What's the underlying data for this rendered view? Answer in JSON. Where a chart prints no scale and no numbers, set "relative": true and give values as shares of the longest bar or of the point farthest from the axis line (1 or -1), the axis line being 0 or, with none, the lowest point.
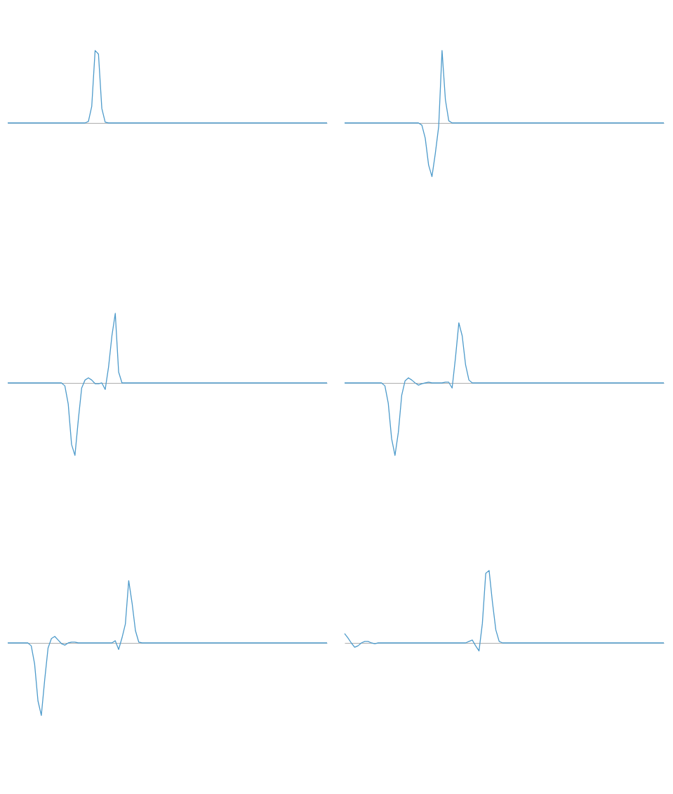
{
  "chart_data": [
    {
      "type": "line",
      "relative": true,
      "color": "#4e9bcb",
      "categories": [
        null,
        null,
        null,
        null,
        null,
        null,
        null,
        null,
        null,
        null,
        null,
        null,
        null,
        null,
        null,
        null,
        null,
        null,
        null,
        null,
        null,
        null,
        null,
        null,
        null,
        null,
        null,
        null,
        null,
        null,
        null,
        null,
        null,
        null,
        null,
        null,
        null,
        null,
        null,
        null,
        null,
        null,
        null,
        null,
        null,
        null,
        null,
        null,
        null,
        null,
        null,
        null,
        null,
        null,
        null,
        null,
        null,
        null,
        null,
        null,
        null,
        null,
        null,
        null,
        null,
        null,
        null,
        null,
        null,
        null,
        null,
        null,
        null,
        null,
        null,
        null,
        null,
        null,
        null,
        null,
        null,
        null,
        null,
        null,
        null,
        null,
        null,
        null,
        null,
        null,
        null,
        null,
        null,
        null,
        null,
        null
      ],
      "values": [
        0,
        0,
        0,
        0,
        0,
        0,
        0,
        0,
        0,
        0,
        0,
        0,
        0,
        0,
        0,
        0,
        0,
        0,
        0,
        0,
        0,
        0,
        0,
        0,
        0.02,
        0.23,
        1,
        0.95,
        0.2,
        0.01,
        0,
        0,
        0,
        0,
        0,
        0,
        0,
        0,
        0,
        0,
        0,
        0,
        0,
        0,
        0,
        0,
        0,
        0,
        0,
        0,
        0,
        0,
        0,
        0,
        0,
        0,
        0,
        0,
        0,
        0,
        0,
        0,
        0,
        0,
        0,
        0,
        0,
        0,
        0,
        0,
        0,
        0,
        0,
        0,
        0,
        0,
        0,
        0,
        0,
        0,
        0,
        0,
        0,
        0,
        0,
        0,
        0,
        0,
        0,
        0,
        0,
        0,
        0,
        0,
        0,
        0
      ]
    },
    {
      "type": "line",
      "relative": true,
      "color": "#4e9bcb",
      "categories": [
        null,
        null,
        null,
        null,
        null,
        null,
        null,
        null,
        null,
        null,
        null,
        null,
        null,
        null,
        null,
        null,
        null,
        null,
        null,
        null,
        null,
        null,
        null,
        null,
        null,
        null,
        null,
        null,
        null,
        null,
        null,
        null,
        null,
        null,
        null,
        null,
        null,
        null,
        null,
        null,
        null,
        null,
        null,
        null,
        null,
        null,
        null,
        null,
        null,
        null,
        null,
        null,
        null,
        null,
        null,
        null,
        null,
        null,
        null,
        null,
        null,
        null,
        null,
        null,
        null,
        null,
        null,
        null,
        null,
        null,
        null,
        null,
        null,
        null,
        null,
        null,
        null,
        null,
        null,
        null,
        null,
        null,
        null,
        null,
        null,
        null,
        null,
        null,
        null,
        null,
        null,
        null,
        null,
        null,
        null,
        null
      ],
      "values": [
        0,
        0,
        0,
        0,
        0,
        0,
        0,
        0,
        0,
        0,
        0,
        0,
        0,
        0,
        0,
        0,
        0,
        0,
        0,
        0,
        0,
        0,
        0,
        -0.03,
        -0.21,
        -0.58,
        -0.74,
        -0.42,
        -0.05,
        1,
        0.32,
        0.03,
        0,
        0,
        0,
        0,
        0,
        0,
        0,
        0,
        0,
        0,
        0,
        0,
        0,
        0,
        0,
        0,
        0,
        0,
        0,
        0,
        0,
        0,
        0,
        0,
        0,
        0,
        0,
        0,
        0,
        0,
        0,
        0,
        0,
        0,
        0,
        0,
        0,
        0,
        0,
        0,
        0,
        0,
        0,
        0,
        0,
        0,
        0,
        0,
        0,
        0,
        0,
        0,
        0,
        0,
        0,
        0,
        0,
        0,
        0,
        0,
        0,
        0,
        0,
        0
      ]
    },
    {
      "type": "line",
      "relative": true,
      "color": "#4e9bcb",
      "categories": [
        null,
        null,
        null,
        null,
        null,
        null,
        null,
        null,
        null,
        null,
        null,
        null,
        null,
        null,
        null,
        null,
        null,
        null,
        null,
        null,
        null,
        null,
        null,
        null,
        null,
        null,
        null,
        null,
        null,
        null,
        null,
        null,
        null,
        null,
        null,
        null,
        null,
        null,
        null,
        null,
        null,
        null,
        null,
        null,
        null,
        null,
        null,
        null,
        null,
        null,
        null,
        null,
        null,
        null,
        null,
        null,
        null,
        null,
        null,
        null,
        null,
        null,
        null,
        null,
        null,
        null,
        null,
        null,
        null,
        null,
        null,
        null,
        null,
        null,
        null,
        null,
        null,
        null,
        null,
        null,
        null,
        null,
        null,
        null,
        null,
        null,
        null,
        null,
        null,
        null,
        null,
        null,
        null,
        null,
        null,
        null
      ],
      "values": [
        0,
        0,
        0,
        0,
        0,
        0,
        0,
        0,
        0,
        0,
        0,
        0,
        0,
        0,
        0,
        0,
        0,
        -0.04,
        -0.29,
        -0.85,
        -1,
        -0.51,
        -0.07,
        0.04,
        0.07,
        0.04,
        -0.01,
        -0.01,
        0,
        -0.09,
        0.22,
        0.65,
        0.96,
        0.15,
        0,
        0,
        0,
        0,
        0,
        0,
        0,
        0,
        0,
        0,
        0,
        0,
        0,
        0,
        0,
        0,
        0,
        0,
        0,
        0,
        0,
        0,
        0,
        0,
        0,
        0,
        0,
        0,
        0,
        0,
        0,
        0,
        0,
        0,
        0,
        0,
        0,
        0,
        0,
        0,
        0,
        0,
        0,
        0,
        0,
        0,
        0,
        0,
        0,
        0,
        0,
        0,
        0,
        0,
        0,
        0,
        0,
        0,
        0,
        0,
        0,
        0
      ]
    },
    {
      "type": "line",
      "relative": true,
      "color": "#4e9bcb",
      "categories": [
        null,
        null,
        null,
        null,
        null,
        null,
        null,
        null,
        null,
        null,
        null,
        null,
        null,
        null,
        null,
        null,
        null,
        null,
        null,
        null,
        null,
        null,
        null,
        null,
        null,
        null,
        null,
        null,
        null,
        null,
        null,
        null,
        null,
        null,
        null,
        null,
        null,
        null,
        null,
        null,
        null,
        null,
        null,
        null,
        null,
        null,
        null,
        null,
        null,
        null,
        null,
        null,
        null,
        null,
        null,
        null,
        null,
        null,
        null,
        null,
        null,
        null,
        null,
        null,
        null,
        null,
        null,
        null,
        null,
        null,
        null,
        null,
        null,
        null,
        null,
        null,
        null,
        null,
        null,
        null,
        null,
        null,
        null,
        null,
        null,
        null,
        null,
        null,
        null,
        null,
        null,
        null,
        null,
        null,
        null,
        null
      ],
      "values": [
        0,
        0,
        0,
        0,
        0,
        0,
        0,
        0,
        0,
        0,
        0,
        0,
        -0.04,
        -0.28,
        -0.77,
        -1,
        -0.68,
        -0.17,
        0.03,
        0.07,
        0.04,
        0,
        -0.03,
        -0.01,
        0,
        0.01,
        0,
        0,
        0,
        0,
        0.01,
        0.01,
        -0.07,
        0.35,
        0.83,
        0.65,
        0.25,
        0.04,
        0,
        0,
        0,
        0,
        0,
        0,
        0,
        0,
        0,
        0,
        0,
        0,
        0,
        0,
        0,
        0,
        0,
        0,
        0,
        0,
        0,
        0,
        0,
        0,
        0,
        0,
        0,
        0,
        0,
        0,
        0,
        0,
        0,
        0,
        0,
        0,
        0,
        0,
        0,
        0,
        0,
        0,
        0,
        0,
        0,
        0,
        0,
        0,
        0,
        0,
        0,
        0,
        0,
        0,
        0,
        0,
        0,
        0
      ]
    },
    {
      "type": "line",
      "relative": true,
      "color": "#4e9bcb",
      "categories": [
        null,
        null,
        null,
        null,
        null,
        null,
        null,
        null,
        null,
        null,
        null,
        null,
        null,
        null,
        null,
        null,
        null,
        null,
        null,
        null,
        null,
        null,
        null,
        null,
        null,
        null,
        null,
        null,
        null,
        null,
        null,
        null,
        null,
        null,
        null,
        null,
        null,
        null,
        null,
        null,
        null,
        null,
        null,
        null,
        null,
        null,
        null,
        null,
        null,
        null,
        null,
        null,
        null,
        null,
        null,
        null,
        null,
        null,
        null,
        null,
        null,
        null,
        null,
        null,
        null,
        null,
        null,
        null,
        null,
        null,
        null,
        null,
        null,
        null,
        null,
        null,
        null,
        null,
        null,
        null,
        null,
        null,
        null,
        null,
        null,
        null,
        null,
        null,
        null,
        null,
        null,
        null,
        null,
        null,
        null,
        null
      ],
      "values": [
        0,
        0,
        0,
        0,
        0,
        0,
        0,
        -0.04,
        -0.29,
        -0.8,
        -1,
        -0.51,
        -0.07,
        0.06,
        0.09,
        0.04,
        -0.01,
        -0.03,
        0,
        0.01,
        0.01,
        0,
        0,
        0,
        0,
        0,
        0,
        0,
        0,
        0,
        0,
        0,
        0.03,
        -0.09,
        0.07,
        0.26,
        0.86,
        0.55,
        0.17,
        0.01,
        0,
        0,
        0,
        0,
        0,
        0,
        0,
        0,
        0,
        0,
        0,
        0,
        0,
        0,
        0,
        0,
        0,
        0,
        0,
        0,
        0,
        0,
        0,
        0,
        0,
        0,
        0,
        0,
        0,
        0,
        0,
        0,
        0,
        0,
        0,
        0,
        0,
        0,
        0,
        0,
        0,
        0,
        0,
        0,
        0,
        0,
        0,
        0,
        0,
        0,
        0,
        0,
        0,
        0,
        0,
        0
      ]
    },
    {
      "type": "line",
      "relative": true,
      "color": "#4e9bcb",
      "categories": [
        null,
        null,
        null,
        null,
        null,
        null,
        null,
        null,
        null,
        null,
        null,
        null,
        null,
        null,
        null,
        null,
        null,
        null,
        null,
        null,
        null,
        null,
        null,
        null,
        null,
        null,
        null,
        null,
        null,
        null,
        null,
        null,
        null,
        null,
        null,
        null,
        null,
        null,
        null,
        null,
        null,
        null,
        null,
        null,
        null,
        null,
        null,
        null,
        null,
        null,
        null,
        null,
        null,
        null,
        null,
        null,
        null,
        null,
        null,
        null,
        null,
        null,
        null,
        null,
        null,
        null,
        null,
        null,
        null,
        null,
        null,
        null,
        null,
        null,
        null,
        null,
        null,
        null,
        null,
        null,
        null,
        null,
        null,
        null,
        null,
        null,
        null,
        null,
        null,
        null,
        null,
        null,
        null,
        null,
        null,
        null
      ],
      "values": [
        0.13,
        0.07,
        0,
        -0.06,
        -0.04,
        0,
        0.02,
        0.02,
        0,
        -0.01,
        0,
        0,
        0,
        0,
        0,
        0,
        0,
        0,
        0,
        0,
        0,
        0,
        0,
        0,
        0,
        0,
        0,
        0,
        0,
        0,
        0,
        0,
        0,
        0,
        0,
        0,
        0,
        0.02,
        0.04,
        -0.04,
        -0.11,
        0.27,
        0.96,
        1,
        0.56,
        0.18,
        0.02,
        0,
        0,
        0,
        0,
        0,
        0,
        0,
        0,
        0,
        0,
        0,
        0,
        0,
        0,
        0,
        0,
        0,
        0,
        0,
        0,
        0,
        0,
        0,
        0,
        0,
        0,
        0,
        0,
        0,
        0,
        0,
        0,
        0,
        0,
        0,
        0,
        0,
        0,
        0,
        0,
        0,
        0,
        0,
        0,
        0,
        0,
        0,
        0,
        0
      ]
    }
  ]
}
